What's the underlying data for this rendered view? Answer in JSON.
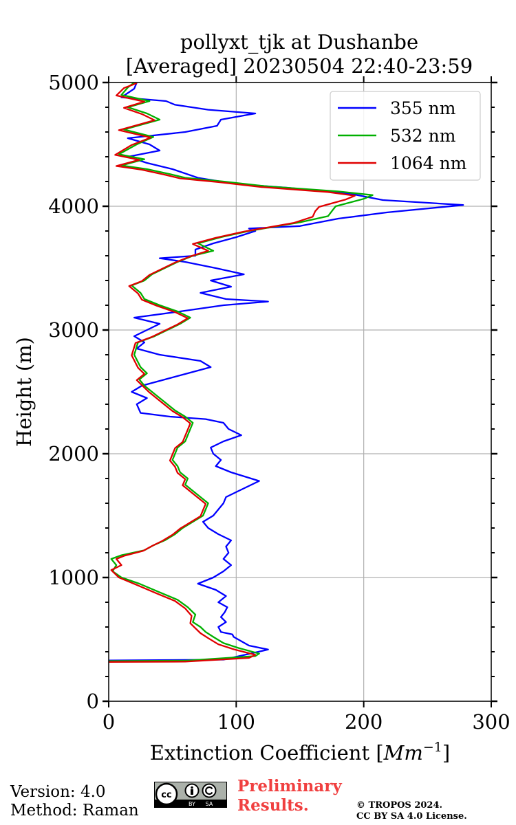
{
  "chart_data": {
    "type": "line",
    "title": "pollyxt_tjk at Dushanbe",
    "subtitle": "[Averaged] 20230504 22:40-23:59",
    "xlabel_main": "Extinction Coefficient [",
    "xlabel_unit": "Mm",
    "xlabel_exp": "−1",
    "xlabel_end": "]",
    "ylabel": "Height (m)",
    "xlim": [
      0,
      300
    ],
    "ylim": [
      0,
      5000
    ],
    "x_ticks": [
      0,
      100,
      200,
      300
    ],
    "x_tick_labels": [
      "0",
      "100",
      "200",
      "300"
    ],
    "y_ticks": [
      0,
      1000,
      2000,
      3000,
      4000,
      5000
    ],
    "y_tick_labels": [
      "0",
      "1000",
      "2000",
      "3000",
      "4000",
      "5000"
    ],
    "grid": true,
    "legend_position": "top-right",
    "series": [
      {
        "name": "355 nm",
        "color": "#0000ff",
        "points": [
          [
            0,
            330
          ],
          [
            40,
            332
          ],
          [
            90,
            336
          ],
          [
            125,
            418
          ],
          [
            110,
            450
          ],
          [
            98,
            520
          ],
          [
            97,
            540
          ],
          [
            88,
            560
          ],
          [
            86,
            600
          ],
          [
            92,
            640
          ],
          [
            88,
            680
          ],
          [
            91,
            720
          ],
          [
            93,
            760
          ],
          [
            86,
            800
          ],
          [
            92,
            850
          ],
          [
            84,
            900
          ],
          [
            70,
            950
          ],
          [
            82,
            1000
          ],
          [
            90,
            1050
          ],
          [
            96,
            1100
          ],
          [
            90,
            1150
          ],
          [
            94,
            1200
          ],
          [
            92,
            1250
          ],
          [
            96,
            1300
          ],
          [
            86,
            1350
          ],
          [
            78,
            1400
          ],
          [
            74,
            1450
          ],
          [
            82,
            1500
          ],
          [
            86,
            1550
          ],
          [
            90,
            1600
          ],
          [
            92,
            1650
          ],
          [
            102,
            1700
          ],
          [
            118,
            1780
          ],
          [
            96,
            1850
          ],
          [
            84,
            1900
          ],
          [
            88,
            1950
          ],
          [
            82,
            2000
          ],
          [
            80,
            2050
          ],
          [
            90,
            2100
          ],
          [
            104,
            2150
          ],
          [
            94,
            2200
          ],
          [
            90,
            2250
          ],
          [
            76,
            2280
          ],
          [
            48,
            2300
          ],
          [
            25,
            2330
          ],
          [
            22,
            2400
          ],
          [
            30,
            2450
          ],
          [
            18,
            2500
          ],
          [
            26,
            2550
          ],
          [
            44,
            2600
          ],
          [
            62,
            2650
          ],
          [
            80,
            2700
          ],
          [
            72,
            2750
          ],
          [
            40,
            2800
          ],
          [
            22,
            2850
          ],
          [
            28,
            2900
          ],
          [
            20,
            2950
          ],
          [
            30,
            3000
          ],
          [
            40,
            3050
          ],
          [
            20,
            3100
          ],
          [
            56,
            3150
          ],
          [
            90,
            3200
          ],
          [
            125,
            3230
          ],
          [
            92,
            3250
          ],
          [
            72,
            3300
          ],
          [
            96,
            3350
          ],
          [
            80,
            3400
          ],
          [
            106,
            3450
          ],
          [
            84,
            3500
          ],
          [
            60,
            3550
          ],
          [
            40,
            3580
          ],
          [
            68,
            3600
          ],
          [
            68,
            3650
          ],
          [
            82,
            3700
          ],
          [
            100,
            3750
          ],
          [
            115,
            3800
          ],
          [
            110,
            3820
          ],
          [
            150,
            3840
          ],
          [
            180,
            3900
          ],
          [
            218,
            3950
          ],
          [
            278,
            4010
          ],
          [
            215,
            4050
          ],
          [
            190,
            4100
          ],
          [
            140,
            4150
          ],
          [
            100,
            4180
          ],
          [
            70,
            4230
          ],
          [
            50,
            4300
          ],
          [
            30,
            4350
          ],
          [
            15,
            4400
          ],
          [
            40,
            4450
          ],
          [
            32,
            4500
          ],
          [
            15,
            4550
          ],
          [
            60,
            4600
          ],
          [
            85,
            4650
          ],
          [
            88,
            4700
          ],
          [
            115,
            4750
          ],
          [
            78,
            4780
          ],
          [
            52,
            4820
          ],
          [
            45,
            4850
          ],
          [
            10,
            4880
          ],
          [
            20,
            4950
          ],
          [
            22,
            5000
          ]
        ]
      },
      {
        "name": "532 nm",
        "color": "#00b000",
        "points": [
          [
            0,
            325
          ],
          [
            60,
            328
          ],
          [
            115,
            365
          ],
          [
            118,
            385
          ],
          [
            102,
            430
          ],
          [
            90,
            470
          ],
          [
            82,
            520
          ],
          [
            76,
            560
          ],
          [
            72,
            600
          ],
          [
            66,
            640
          ],
          [
            68,
            700
          ],
          [
            62,
            760
          ],
          [
            54,
            820
          ],
          [
            40,
            880
          ],
          [
            24,
            950
          ],
          [
            10,
            1000
          ],
          [
            3,
            1050
          ],
          [
            6,
            1100
          ],
          [
            2,
            1150
          ],
          [
            10,
            1180
          ],
          [
            28,
            1220
          ],
          [
            35,
            1260
          ],
          [
            44,
            1300
          ],
          [
            52,
            1350
          ],
          [
            58,
            1400
          ],
          [
            66,
            1450
          ],
          [
            74,
            1500
          ],
          [
            76,
            1550
          ],
          [
            78,
            1600
          ],
          [
            72,
            1650
          ],
          [
            66,
            1700
          ],
          [
            60,
            1750
          ],
          [
            62,
            1800
          ],
          [
            56,
            1850
          ],
          [
            54,
            1900
          ],
          [
            50,
            1950
          ],
          [
            52,
            2000
          ],
          [
            54,
            2050
          ],
          [
            60,
            2100
          ],
          [
            62,
            2150
          ],
          [
            64,
            2200
          ],
          [
            66,
            2250
          ],
          [
            60,
            2300
          ],
          [
            52,
            2350
          ],
          [
            46,
            2400
          ],
          [
            40,
            2450
          ],
          [
            34,
            2500
          ],
          [
            28,
            2550
          ],
          [
            24,
            2600
          ],
          [
            30,
            2650
          ],
          [
            25,
            2700
          ],
          [
            20,
            2800
          ],
          [
            23,
            2900
          ],
          [
            36,
            2950
          ],
          [
            46,
            3000
          ],
          [
            56,
            3050
          ],
          [
            64,
            3100
          ],
          [
            54,
            3150
          ],
          [
            40,
            3200
          ],
          [
            28,
            3250
          ],
          [
            25,
            3300
          ],
          [
            18,
            3360
          ],
          [
            28,
            3400
          ],
          [
            34,
            3450
          ],
          [
            44,
            3500
          ],
          [
            54,
            3550
          ],
          [
            66,
            3600
          ],
          [
            82,
            3640
          ],
          [
            70,
            3700
          ],
          [
            88,
            3750
          ],
          [
            110,
            3800
          ],
          [
            150,
            3870
          ],
          [
            172,
            3920
          ],
          [
            175,
            3960
          ],
          [
            178,
            4000
          ],
          [
            200,
            4060
          ],
          [
            207,
            4090
          ],
          [
            180,
            4120
          ],
          [
            125,
            4160
          ],
          [
            90,
            4200
          ],
          [
            60,
            4230
          ],
          [
            48,
            4260
          ],
          [
            30,
            4300
          ],
          [
            10,
            4330
          ],
          [
            28,
            4380
          ],
          [
            8,
            4420
          ],
          [
            22,
            4500
          ],
          [
            35,
            4560
          ],
          [
            12,
            4620
          ],
          [
            40,
            4700
          ],
          [
            30,
            4750
          ],
          [
            15,
            4800
          ],
          [
            32,
            4850
          ],
          [
            10,
            4900
          ],
          [
            15,
            4960
          ],
          [
            20,
            5000
          ]
        ]
      },
      {
        "name": "1064 nm",
        "color": "#e00000",
        "points": [
          [
            0,
            318
          ],
          [
            60,
            320
          ],
          [
            110,
            350
          ],
          [
            115,
            375
          ],
          [
            98,
            420
          ],
          [
            86,
            460
          ],
          [
            78,
            510
          ],
          [
            72,
            550
          ],
          [
            68,
            590
          ],
          [
            64,
            630
          ],
          [
            65,
            690
          ],
          [
            60,
            750
          ],
          [
            52,
            810
          ],
          [
            38,
            870
          ],
          [
            22,
            940
          ],
          [
            8,
            1000
          ],
          [
            2,
            1060
          ],
          [
            10,
            1100
          ],
          [
            6,
            1150
          ],
          [
            12,
            1175
          ],
          [
            27,
            1215
          ],
          [
            34,
            1255
          ],
          [
            42,
            1295
          ],
          [
            50,
            1345
          ],
          [
            56,
            1395
          ],
          [
            64,
            1445
          ],
          [
            72,
            1495
          ],
          [
            74,
            1545
          ],
          [
            76,
            1595
          ],
          [
            70,
            1645
          ],
          [
            64,
            1695
          ],
          [
            58,
            1745
          ],
          [
            60,
            1795
          ],
          [
            54,
            1845
          ],
          [
            52,
            1895
          ],
          [
            48,
            1945
          ],
          [
            50,
            1995
          ],
          [
            52,
            2045
          ],
          [
            58,
            2095
          ],
          [
            60,
            2145
          ],
          [
            62,
            2195
          ],
          [
            64,
            2245
          ],
          [
            58,
            2295
          ],
          [
            50,
            2345
          ],
          [
            44,
            2395
          ],
          [
            38,
            2445
          ],
          [
            32,
            2495
          ],
          [
            27,
            2545
          ],
          [
            22,
            2595
          ],
          [
            28,
            2645
          ],
          [
            23,
            2695
          ],
          [
            18,
            2795
          ],
          [
            21,
            2895
          ],
          [
            34,
            2945
          ],
          [
            44,
            2995
          ],
          [
            54,
            3045
          ],
          [
            62,
            3095
          ],
          [
            52,
            3145
          ],
          [
            38,
            3195
          ],
          [
            26,
            3245
          ],
          [
            23,
            3295
          ],
          [
            16,
            3355
          ],
          [
            26,
            3395
          ],
          [
            32,
            3445
          ],
          [
            42,
            3495
          ],
          [
            52,
            3545
          ],
          [
            64,
            3595
          ],
          [
            78,
            3640
          ],
          [
            66,
            3695
          ],
          [
            84,
            3745
          ],
          [
            106,
            3795
          ],
          [
            145,
            3865
          ],
          [
            160,
            3915
          ],
          [
            162,
            3960
          ],
          [
            165,
            3995
          ],
          [
            186,
            4055
          ],
          [
            193,
            4085
          ],
          [
            172,
            4115
          ],
          [
            120,
            4155
          ],
          [
            86,
            4195
          ],
          [
            56,
            4225
          ],
          [
            44,
            4255
          ],
          [
            26,
            4295
          ],
          [
            6,
            4325
          ],
          [
            24,
            4375
          ],
          [
            5,
            4415
          ],
          [
            18,
            4495
          ],
          [
            33,
            4555
          ],
          [
            8,
            4615
          ],
          [
            36,
            4695
          ],
          [
            26,
            4745
          ],
          [
            12,
            4795
          ],
          [
            28,
            4845
          ],
          [
            6,
            4895
          ],
          [
            12,
            4955
          ],
          [
            22,
            4995
          ]
        ]
      }
    ]
  },
  "footer": {
    "version": "Version: 4.0",
    "method": "Method: Raman",
    "preliminary_line1": "Preliminary",
    "preliminary_line2": "Results.",
    "copyright_line1": "© TROPOS 2024.",
    "copyright_line2": "CC BY SA 4.0 License.",
    "license_badge_left": "BY",
    "license_badge_right": "SA",
    "license_badge_cc": "cc"
  }
}
